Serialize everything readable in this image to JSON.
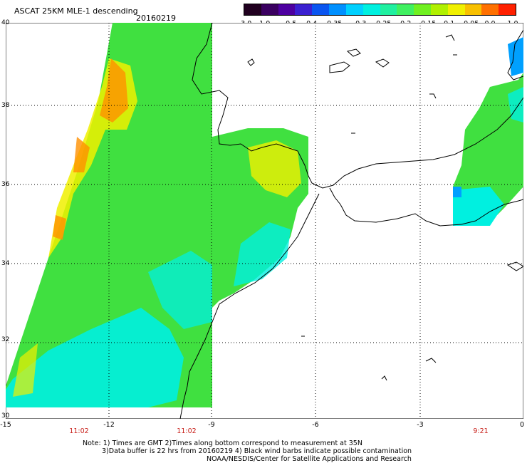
{
  "header": {
    "title": "ASCAT 25KM MLE-1 descending",
    "date": "20160219"
  },
  "colorbar": {
    "colors": [
      "#20001f",
      "#3a0060",
      "#4d00a0",
      "#3a20d0",
      "#0a55f0",
      "#0090ff",
      "#00d0ff",
      "#00f0e0",
      "#20f0a0",
      "#40f060",
      "#70f020",
      "#b0f000",
      "#f0f000",
      "#f8c000",
      "#ff7000",
      "#ff2000"
    ],
    "labels": [
      "-3.0",
      "-1.0",
      "-0.5",
      "-0.4",
      "-0.35",
      "-0.3",
      "-0.25",
      "-0.2",
      "-0.15",
      "-0.1",
      "-0.05",
      "0.0",
      "1.0"
    ]
  },
  "axes": {
    "lat_labels": [
      "40",
      "38",
      "36",
      "34",
      "32",
      "30"
    ],
    "lon_labels": [
      "-15",
      "-12",
      "-9",
      "-6",
      "-3",
      "0"
    ]
  },
  "pass_times": [
    "11:02",
    "11:02",
    "9:21"
  ],
  "notes": {
    "line1": "Note: 1) Times are GMT 2)Times along bottom correspond to measurement at 35N",
    "line2": "3)Data buffer is 22 hrs from 20160219 4) Black wind barbs indicate possible contamination",
    "line3": "NOAA/NESDIS/Center for Satellite Applications and Research"
  },
  "map_colors": {
    "ocean_bg": "#ffffff",
    "coast": "#000000",
    "grid": "#000000",
    "swath_green": "#40e040",
    "swath_cyan": "#00f0e0",
    "swath_yellow": "#f0f000",
    "swath_orange": "#ff9000",
    "swath_blue": "#00a0ff"
  }
}
